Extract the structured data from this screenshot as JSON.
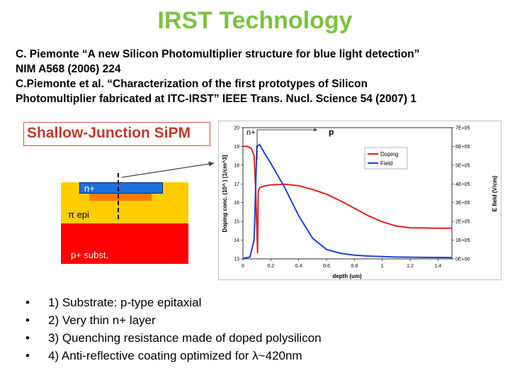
{
  "slide": {
    "title": "IRST Technology",
    "references": [
      "C. Piemonte “A new Silicon Photomultiplier structure for blue light detection”",
      "NIM A568 (2006) 224",
      "C.Piemonte et al. “Characterization of the first prototypes of Silicon",
      "Photomultiplier fabricated at ITC-IRST” IEEE Trans. Nucl. Science 54 (2007) 1"
    ],
    "figure_label": "Shallow-Junction SiPM",
    "device_layers": {
      "nplus": "n+",
      "epi": "π epi",
      "subst": "p+ subst."
    },
    "bullet_char": "•",
    "bullets": [
      "1) Substrate: p-type epitaxial",
      "2) Very thin n+ layer",
      "3) Quenching resistance made of doped polysilicon",
      "4) Anti-reflective coating optimized for λ~420nm"
    ],
    "colors": {
      "title": "#7dc242",
      "doping": "#e02020",
      "field": "#2040e0"
    }
  },
  "chart_data": {
    "type": "line",
    "xlabel": "depth (um)",
    "ylabel": "Doping conc. (10^ ) [1/cm^3]",
    "y2label": "E field (V/cm)",
    "xlim": [
      0,
      1.5
    ],
    "ylim": [
      13,
      20
    ],
    "y2lim": [
      0,
      700000
    ],
    "xticks": [
      "0",
      "0.2",
      "0.4",
      "0.6",
      "0.8",
      "1",
      "1.2",
      "1.4"
    ],
    "yticks": [
      "13",
      "14",
      "15",
      "16",
      "17",
      "18",
      "19",
      "20"
    ],
    "y2ticks": [
      "0E+00",
      "1E+05",
      "2E+05",
      "3E+05",
      "4E+05",
      "5E+05",
      "6E+05",
      "7E+05"
    ],
    "region_labels": [
      "n+",
      "p"
    ],
    "legend": "top-right",
    "series": [
      {
        "name": "Doping",
        "axis": "left",
        "x": [
          0,
          0.03,
          0.06,
          0.08,
          0.09,
          0.1,
          0.105,
          0.11,
          0.12,
          0.15,
          0.2,
          0.3,
          0.4,
          0.5,
          0.6,
          0.7,
          0.8,
          0.9,
          1.0,
          1.1,
          1.2,
          1.3,
          1.4,
          1.5
        ],
        "values": [
          19.0,
          19.0,
          18.9,
          18.5,
          17.0,
          14.5,
          13.3,
          16.6,
          16.8,
          16.88,
          16.95,
          16.98,
          16.9,
          16.7,
          16.45,
          16.1,
          15.7,
          15.3,
          14.98,
          14.75,
          14.66,
          14.65,
          14.64,
          14.64
        ]
      },
      {
        "name": "Field",
        "axis": "right",
        "x": [
          0,
          0.05,
          0.08,
          0.1,
          0.12,
          0.15,
          0.2,
          0.3,
          0.4,
          0.5,
          0.6,
          0.7,
          0.8,
          0.9,
          1.0,
          1.1,
          1.2,
          1.3,
          1.4,
          1.5
        ],
        "values": [
          2000,
          10000,
          100000,
          600000,
          610000,
          570000,
          510000,
          380000,
          230000,
          110000,
          50000,
          30000,
          20000,
          15000,
          12000,
          10000,
          9000,
          8000,
          7500,
          7000
        ]
      }
    ]
  }
}
